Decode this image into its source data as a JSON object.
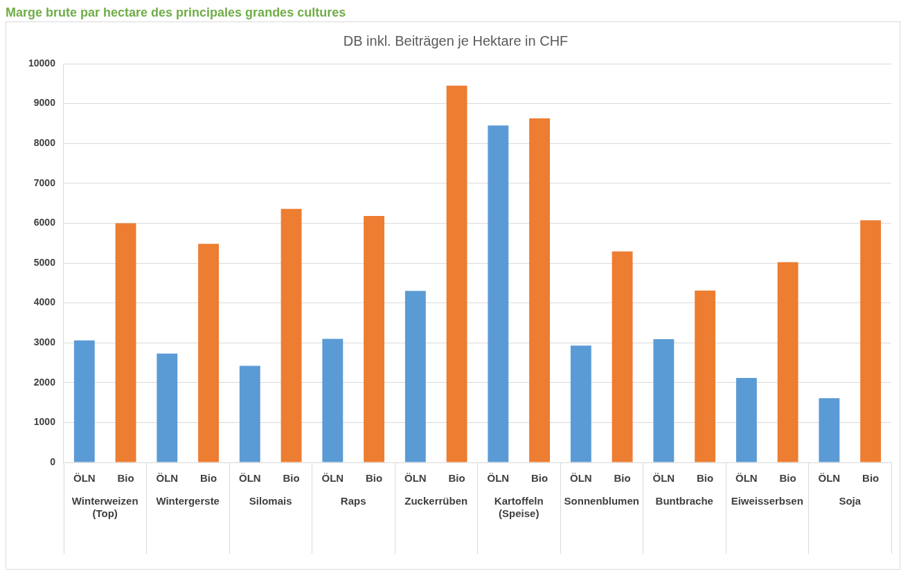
{
  "chart_data": {
    "type": "bar",
    "title": "Marge brute par hectare des principales grandes cultures",
    "subtitle": "DB inkl. Beiträgen je Hektare in CHF",
    "categories": [
      "Winterweizen (Top)",
      "Wintergerste",
      "Silomais",
      "Raps",
      "Zuckerrüben",
      "Kartoffeln (Speise)",
      "Sonnenblumen",
      "Buntbrache",
      "Eiweisserbsen",
      "Soja"
    ],
    "series": [
      {
        "name": "ÖLN",
        "color": "#5b9bd5",
        "values": [
          3060,
          2730,
          2420,
          3100,
          4300,
          8450,
          2930,
          3090,
          2120,
          1610
        ]
      },
      {
        "name": "Bio",
        "color": "#ed7d31",
        "values": [
          6000,
          5480,
          6360,
          6180,
          9450,
          8630,
          5290,
          4310,
          5020,
          6070
        ]
      }
    ],
    "ylim": [
      0,
      10000
    ],
    "yticks": [
      0,
      1000,
      2000,
      3000,
      4000,
      5000,
      6000,
      7000,
      8000,
      9000,
      10000
    ],
    "grid": "y",
    "legend": false
  }
}
